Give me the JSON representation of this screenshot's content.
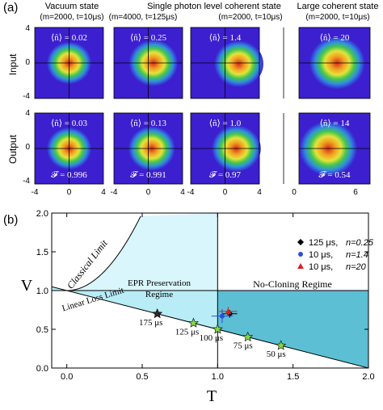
{
  "panel_a": {
    "label": "(a)",
    "columns": [
      {
        "title": "Vacuum state",
        "params": "(m=2000, t=10μs)",
        "xticks": [
          "-4",
          "0",
          "4"
        ],
        "input": {
          "n": "⟨n̂⟩ = 0.02",
          "cx": 0.0,
          "cy": 0.0,
          "r": 1.0
        },
        "output": {
          "n": "⟨n̂⟩ = 0.03",
          "F": "𝓕 = 0.996",
          "cx": 0.0,
          "cy": 0.0,
          "r": 1.0
        }
      },
      {
        "title": "",
        "params": "(m=4000, t=125μs)",
        "xticks": [
          "-4",
          "0",
          "4"
        ],
        "input": {
          "n": "⟨n̂⟩ = 0.25",
          "cx": 0.6,
          "cy": 0.0,
          "r": 1.1
        },
        "output": {
          "n": "⟨n̂⟩ = 0.13",
          "F": "𝓕 = 0.991",
          "cx": 0.4,
          "cy": 0.0,
          "r": 1.05
        }
      },
      {
        "title": "",
        "params": "(m=2000, t=10μs)",
        "xticks": [
          "-4",
          "0",
          "4"
        ],
        "input": {
          "n": "⟨n̂⟩ = 1.4",
          "cx": 1.6,
          "cy": -0.1,
          "r": 1.1
        },
        "output": {
          "n": "⟨n̂⟩ = 1.0",
          "F": "𝓕 = 0.97",
          "cx": 1.3,
          "cy": 0.0,
          "r": 1.1
        }
      },
      {
        "title": "Large coherent state",
        "params": "(m=2000, t=10μs)",
        "xticks": [
          "0",
          "6"
        ],
        "input": {
          "n": "⟨n̂⟩ = 20",
          "cx": 6.3,
          "cy": 0.0,
          "r": 1.2
        },
        "output": {
          "n": "⟨n̂⟩ = 14",
          "F": "𝓕 = 0.54",
          "cx": 5.3,
          "cy": 0.0,
          "r": 1.25
        }
      }
    ],
    "spanning_title": "Single photon level coherent state",
    "row_labels": [
      "Input",
      "Output"
    ],
    "yticks": [
      "4",
      "0",
      "-4"
    ],
    "colors": {
      "bg": "#3c1fcf",
      "ring": "#2f8ee0",
      "mid": "#46c84a",
      "inner": "#e8e23a",
      "core": "#d82a20"
    }
  },
  "chart_data": {
    "type": "scatter",
    "label": "(b)",
    "xlabel": "T",
    "ylabel": "V",
    "xlim": [
      -0.1,
      2.0
    ],
    "ylim": [
      0.0,
      2.0
    ],
    "xticks": [
      "0.0",
      "0.5",
      "1.0",
      "1.5",
      "2.0"
    ],
    "yticks": [
      "0.0",
      "0.5",
      "1.0",
      "1.5",
      "2.0"
    ],
    "curves": {
      "classical_limit": "V = 1 + 1/T... boundary curve",
      "linear_loss_limit": "V = 1 - T/2"
    },
    "region_labels": {
      "classical": "Classical Limit",
      "linear_loss": "Linear Loss Limit",
      "epr_line1": "EPR Preservation",
      "epr_line2": "Regime",
      "no_cloning": "No-Cloning Regime"
    },
    "star_points": [
      {
        "x": 0.6,
        "y": 0.7,
        "label": "175 μs",
        "color": "#2a2a2a"
      },
      {
        "x": 0.84,
        "y": 0.58,
        "label": "125 μs",
        "color": "#7fd64a"
      },
      {
        "x": 1.0,
        "y": 0.5,
        "label": "100 μs",
        "color": "#7fd64a"
      },
      {
        "x": 1.2,
        "y": 0.4,
        "label": "75 μs",
        "color": "#7fd64a"
      },
      {
        "x": 1.42,
        "y": 0.29,
        "label": "50 μs",
        "color": "#7fd64a"
      }
    ],
    "series": [
      {
        "name": "125 μs, n=0.25",
        "marker": "diamond",
        "color": "#000000",
        "x": 1.08,
        "y": 0.7,
        "xerr": 0.05,
        "yerr": 0.05
      },
      {
        "name": "10 μs, n=1.4",
        "marker": "circle",
        "color": "#2a4fd8",
        "x": 1.03,
        "y": 0.67,
        "xerr": 0.07,
        "yerr": 0.09
      },
      {
        "name": "10 μs, n=20",
        "marker": "triangle",
        "color": "#d8202a",
        "x": 1.07,
        "y": 0.73,
        "xerr": 0.06,
        "yerr": 0.06
      }
    ],
    "legend": [
      {
        "marker": "diamond",
        "color": "#000000",
        "time": "125 μs,",
        "n": "n=0.25"
      },
      {
        "marker": "circle",
        "color": "#2a4fd8",
        "time": "10 μs,",
        "n": "n=1.4"
      },
      {
        "marker": "triangle",
        "color": "#d8202a",
        "time": "10 μs,",
        "n": "n=20"
      }
    ],
    "legend_position": "top-right",
    "colors": {
      "classical_fill": "#d8f6fb",
      "epr_fill": "#b8ecf6",
      "nocloning_fill": "#5cbfd4",
      "frame": "#000000"
    }
  }
}
